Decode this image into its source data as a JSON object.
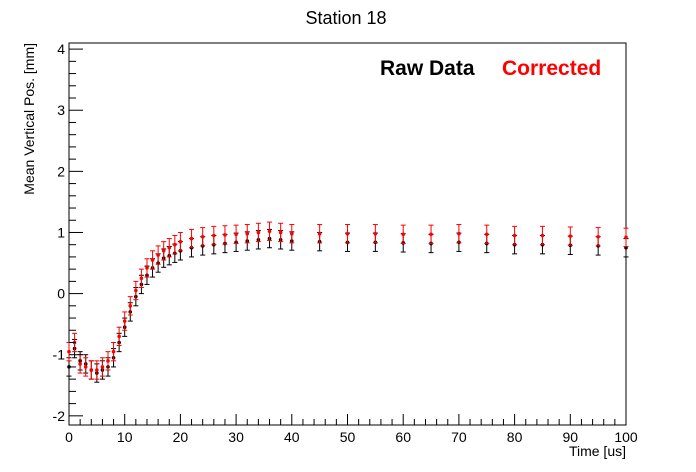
{
  "chart_data": {
    "type": "scatter",
    "title": "Station 18",
    "xlabel": "Time [us]",
    "ylabel": "Mean Vertical Pos. [mm]",
    "xlim": [
      0,
      100
    ],
    "ylim": [
      -2.15,
      4.1
    ],
    "grid": false,
    "legend_position": "top-right",
    "x_ticks": [
      0,
      10,
      20,
      30,
      40,
      50,
      60,
      70,
      80,
      90,
      100
    ],
    "y_ticks": [
      -2,
      -1,
      0,
      1,
      2,
      3,
      4
    ],
    "series": [
      {
        "name": "Raw Data",
        "color": "#000000",
        "x": [
          0,
          1,
          2,
          3,
          4,
          5,
          6,
          7,
          8,
          9,
          10,
          11,
          12,
          13,
          14,
          15,
          16,
          17,
          18,
          19,
          20,
          22,
          24,
          26,
          28,
          30,
          32,
          34,
          36,
          38,
          40,
          45,
          50,
          55,
          60,
          65,
          70,
          75,
          80,
          85,
          90,
          95,
          100
        ],
        "y": [
          -1.2,
          -0.9,
          -1.1,
          -1.15,
          -1.25,
          -1.3,
          -1.25,
          -1.2,
          -1.05,
          -0.8,
          -0.55,
          -0.3,
          -0.05,
          0.15,
          0.3,
          0.42,
          0.5,
          0.58,
          0.62,
          0.66,
          0.7,
          0.75,
          0.78,
          0.8,
          0.82,
          0.84,
          0.86,
          0.88,
          0.9,
          0.88,
          0.86,
          0.85,
          0.84,
          0.84,
          0.83,
          0.82,
          0.84,
          0.82,
          0.8,
          0.8,
          0.79,
          0.78,
          0.75
        ],
        "error": 0.15
      },
      {
        "name": "Corrected",
        "color": "#ff0000",
        "x": [
          0,
          1,
          2,
          3,
          4,
          5,
          6,
          7,
          8,
          9,
          10,
          11,
          12,
          13,
          14,
          15,
          16,
          17,
          18,
          19,
          20,
          22,
          24,
          26,
          28,
          30,
          32,
          34,
          36,
          38,
          40,
          45,
          50,
          55,
          60,
          65,
          70,
          75,
          80,
          85,
          90,
          95,
          100
        ],
        "y": [
          -0.95,
          -0.8,
          -1.15,
          -1.2,
          -1.25,
          -1.25,
          -1.2,
          -1.1,
          -0.95,
          -0.7,
          -0.45,
          -0.2,
          0.05,
          0.25,
          0.42,
          0.55,
          0.63,
          0.7,
          0.75,
          0.8,
          0.85,
          0.9,
          0.93,
          0.95,
          0.96,
          0.97,
          0.98,
          1.0,
          1.02,
          1.0,
          0.98,
          0.98,
          0.98,
          0.98,
          0.97,
          0.97,
          0.98,
          0.97,
          0.95,
          0.95,
          0.94,
          0.93,
          0.92
        ],
        "error": 0.15
      }
    ]
  }
}
